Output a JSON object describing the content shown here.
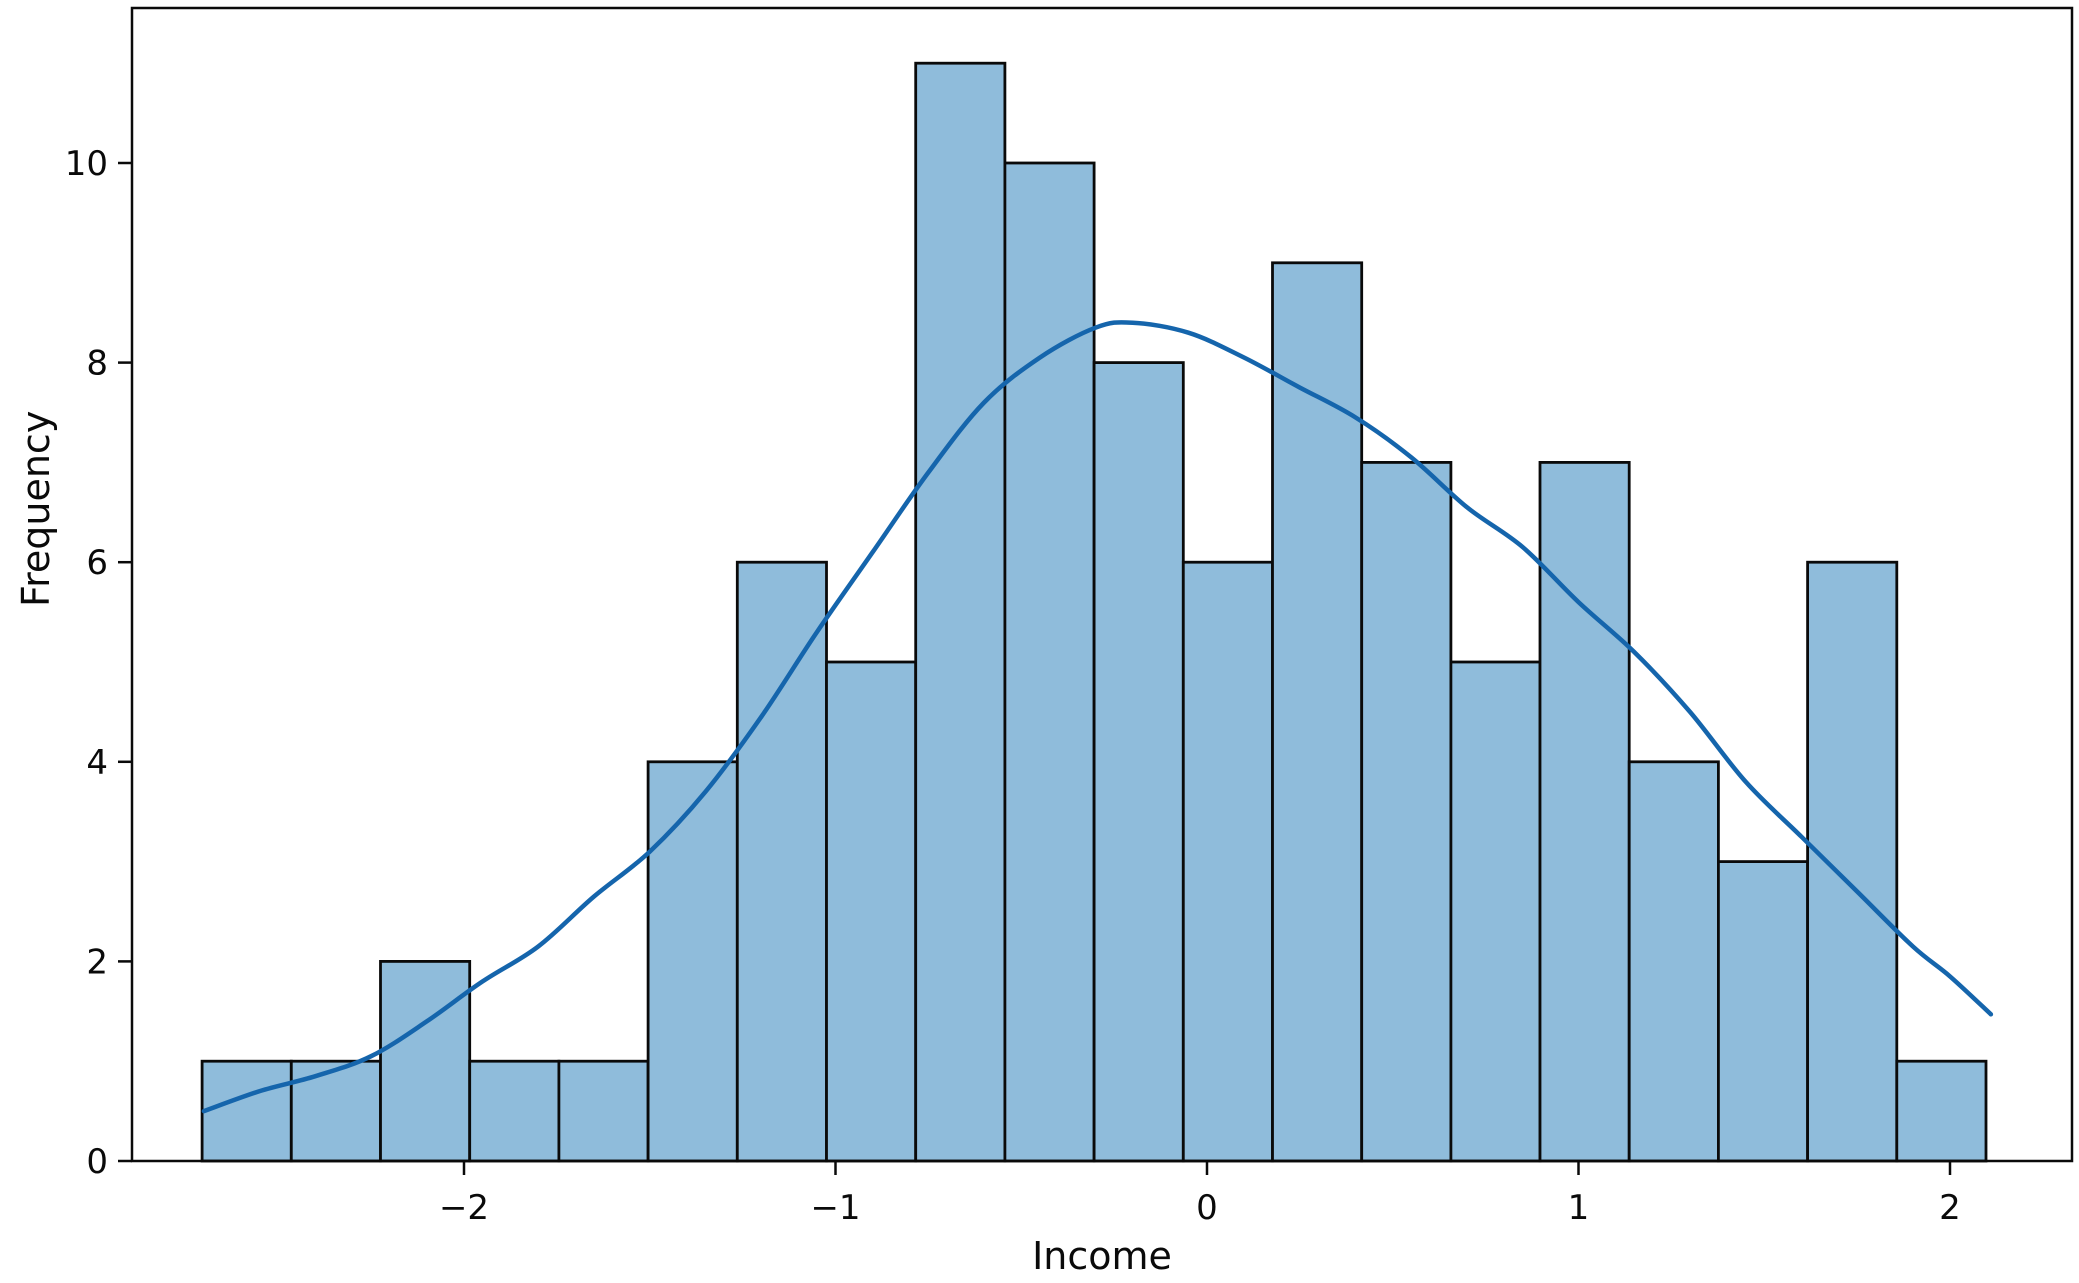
{
  "figure": {
    "background": "#ffffff"
  },
  "chart_data": {
    "type": "histogram",
    "title": "",
    "xlabel": "Income",
    "ylabel": "Frequency",
    "legend": "none",
    "grid": false,
    "xlim": [
      -2.893,
      2.328
    ],
    "ylim": [
      0,
      11.55
    ],
    "x_tick_values": [
      -2,
      -1,
      0,
      1,
      2
    ],
    "x_tick_labels": [
      "−2",
      "−1",
      "0",
      "1",
      "2"
    ],
    "y_tick_values": [
      0,
      2,
      4,
      6,
      8,
      10
    ],
    "y_tick_labels": [
      "0",
      "2",
      "4",
      "6",
      "8",
      "10"
    ],
    "bins": {
      "start": -2.705,
      "width": 0.2401,
      "count": 20
    },
    "bar_counts": [
      1,
      1,
      2,
      1,
      1,
      4,
      6,
      5,
      11,
      10,
      8,
      6,
      9,
      7,
      5,
      7,
      4,
      3,
      6,
      1
    ],
    "kde_series": {
      "name": "kde",
      "x": [
        -2.7,
        -2.55,
        -2.4,
        -2.25,
        -2.1,
        -1.95,
        -1.8,
        -1.65,
        -1.5,
        -1.35,
        -1.2,
        -1.05,
        -0.9,
        -0.75,
        -0.6,
        -0.45,
        -0.3,
        -0.2,
        -0.05,
        0.1,
        0.25,
        0.4,
        0.55,
        0.7,
        0.85,
        1.0,
        1.15,
        1.3,
        1.45,
        1.6,
        1.75,
        1.9,
        2.0,
        2.11
      ],
      "y": [
        0.5,
        0.7,
        0.85,
        1.05,
        1.4,
        1.8,
        2.15,
        2.65,
        3.1,
        3.7,
        4.45,
        5.3,
        6.1,
        6.9,
        7.6,
        8.05,
        8.35,
        8.4,
        8.3,
        8.05,
        7.75,
        7.45,
        7.05,
        6.55,
        6.15,
        5.6,
        5.1,
        4.5,
        3.8,
        3.25,
        2.7,
        2.15,
        1.85,
        1.47
      ]
    },
    "colors": {
      "bar_fill": "#8fbcdb",
      "bar_edge": "#0a0a0a",
      "kde_line": "#1565ac",
      "axis": "#0a0a0a",
      "text": "#0a0a0a",
      "background": "#ffffff"
    }
  }
}
